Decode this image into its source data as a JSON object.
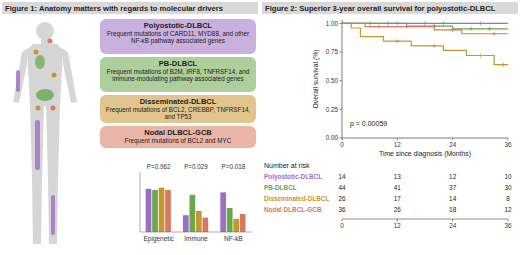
{
  "figure1": {
    "title": "Figure 1: Anatomy matters with regards to molecular drivers",
    "groups": [
      {
        "title": "Polyostotic-DLBCL",
        "text": "Frequent mutations of CARD11, MYD88, and other NF-κB pathway associated genes",
        "color": "#9c6fc4"
      },
      {
        "title": "PB-DLBCL",
        "text": "Frequent mutations of B2M, IRF8, TNFRSF14, and immune-modulating pathway associated genes",
        "color": "#67a84a"
      },
      {
        "title": "Disseminated-DLBCL",
        "text": "Frequent mutations of BCL2, CREBBP, TNFRSF14, and TP53",
        "color": "#c8952f"
      },
      {
        "title": "Nodal DLBCL-GCB",
        "text": "Frequent mutations of BCL2 and MYC",
        "color": "#d9785f"
      }
    ]
  },
  "chart_data": [
    {
      "type": "bar",
      "categories": [
        "Epigenetic",
        "Immune",
        "NF-kB"
      ],
      "series": [
        {
          "color": "#9c6fc4",
          "values": [
            72,
            28,
            66
          ]
        },
        {
          "color": "#67a84a",
          "values": [
            70,
            62,
            40
          ]
        },
        {
          "color": "#c8952f",
          "values": [
            74,
            35,
            22
          ]
        },
        {
          "color": "#d9785f",
          "values": [
            70,
            24,
            30
          ]
        }
      ],
      "annotations": [
        "P=0.962",
        "P=0.029",
        "P=0.018"
      ],
      "ylim": [
        0,
        100
      ],
      "tick_labels": "x"
    },
    {
      "type": "line",
      "title": "Figure 2: Superior 3-year overall survival for polyostotic-DLBCL",
      "xlabel": "Time since diagnosis (Months)",
      "ylabel": "Overall survival (%)",
      "xlim": [
        0,
        36
      ],
      "ylim": [
        0,
        1.03
      ],
      "xticks": [
        0,
        12,
        24,
        36
      ],
      "yticks": [
        {
          "value": 0,
          "label": "0.00"
        },
        {
          "value": 0.25,
          "label": "0.25"
        },
        {
          "value": 0.5,
          "label": "0.50"
        },
        {
          "value": 0.75,
          "label": "0.75"
        },
        {
          "value": 1,
          "label": "1.00"
        }
      ],
      "line_style": "step",
      "marker": "plus",
      "annotations": [
        "p = 0.00059"
      ],
      "risk_table_title": "Number at risk",
      "series": [
        {
          "name": "Polyostotic-DLBCL",
          "color": "#9c6fc4",
          "x": [
            0,
            36
          ],
          "values": [
            1,
            1
          ],
          "censored": [
            10,
            18,
            22,
            30
          ],
          "at_risk": [
            14,
            13,
            12,
            10
          ]
        },
        {
          "name": "PB-DLBCL",
          "color": "#67a84a",
          "x": [
            0,
            14,
            24,
            36
          ],
          "values": [
            1,
            0.977,
            0.953,
            0.953
          ],
          "censored": [
            6,
            12,
            20,
            28,
            32
          ],
          "at_risk": [
            44,
            41,
            37,
            30
          ]
        },
        {
          "name": "Disseminated-DLBCL",
          "color": "#c8952f",
          "x": [
            0,
            2,
            4,
            9,
            15,
            22,
            27,
            33,
            36
          ],
          "values": [
            1,
            0.96,
            0.885,
            0.845,
            0.805,
            0.765,
            0.72,
            0.64,
            0.64
          ],
          "censored": [
            12,
            20,
            30,
            35
          ],
          "at_risk": [
            26,
            17,
            14,
            8
          ]
        },
        {
          "name": "Nodal DLBCL-GCB",
          "color": "#d9785f",
          "x": [
            0,
            5,
            20,
            26,
            36
          ],
          "values": [
            1,
            0.972,
            0.943,
            0.91,
            0.91
          ],
          "censored": [
            8,
            14,
            24,
            33
          ],
          "at_risk": [
            36,
            26,
            18,
            12
          ]
        }
      ]
    }
  ]
}
